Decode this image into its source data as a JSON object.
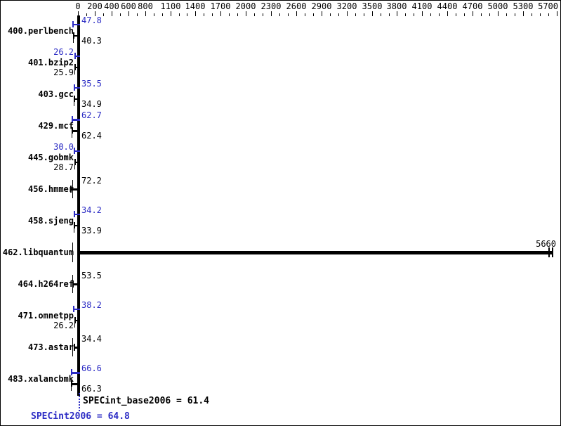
{
  "chart_data": {
    "type": "bar",
    "orientation": "horizontal",
    "xlim": [
      0,
      5700
    ],
    "x_axis": {
      "position": "top",
      "labeled_ticks": [
        0,
        200,
        400,
        600,
        800,
        1100,
        1400,
        1700,
        2000,
        2300,
        2600,
        2900,
        3200,
        3500,
        3800,
        4100,
        4400,
        4700,
        5000,
        5300,
        5700
      ],
      "minor_tick_step": 100
    },
    "series_legend": {
      "peak_color_meaning": "peak result (blue)",
      "base_color_meaning": "base result (black)"
    },
    "benchmarks": [
      {
        "label": "400.perlbench",
        "peak": "47.8",
        "base": "40.3"
      },
      {
        "label": "401.bzip2",
        "peak": "26.2",
        "base": "25.9"
      },
      {
        "label": "403.gcc",
        "peak": "35.5",
        "base": "34.9"
      },
      {
        "label": "429.mcf",
        "peak": "62.7",
        "base": "62.4"
      },
      {
        "label": "445.gobmk",
        "peak": "30.0",
        "base": "28.7"
      },
      {
        "label": "456.hmmer",
        "value": "72.2"
      },
      {
        "label": "458.sjeng",
        "peak": "34.2",
        "base": "33.9"
      },
      {
        "label": "462.libquantum",
        "value": "5660"
      },
      {
        "label": "464.h264ref",
        "value": "53.5"
      },
      {
        "label": "471.omnetpp",
        "peak": "38.2",
        "base": "26.2"
      },
      {
        "label": "473.astar",
        "value": "34.4"
      },
      {
        "label": "483.xalancbmk",
        "peak": "66.6",
        "base": "66.3"
      }
    ],
    "summary": {
      "base_label": "SPECint_base2006 = 61.4",
      "peak_label": "SPECint2006 = 64.8",
      "base_value": 61.4,
      "peak_value": 64.8
    },
    "colors": {
      "peak": "#2b2bc4",
      "base": "#000000"
    }
  }
}
